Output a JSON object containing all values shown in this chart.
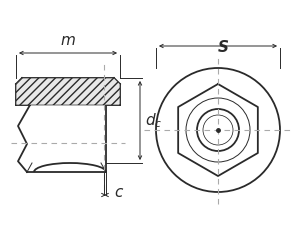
{
  "bg_color": "#ffffff",
  "line_color": "#2a2a2a",
  "dim_color": "#2a2a2a",
  "font_size": 10,
  "line_width": 1.3,
  "thin_line": 0.7,
  "label_c": "c",
  "label_dc": "$d_c$",
  "label_m": "m",
  "label_s": "S"
}
